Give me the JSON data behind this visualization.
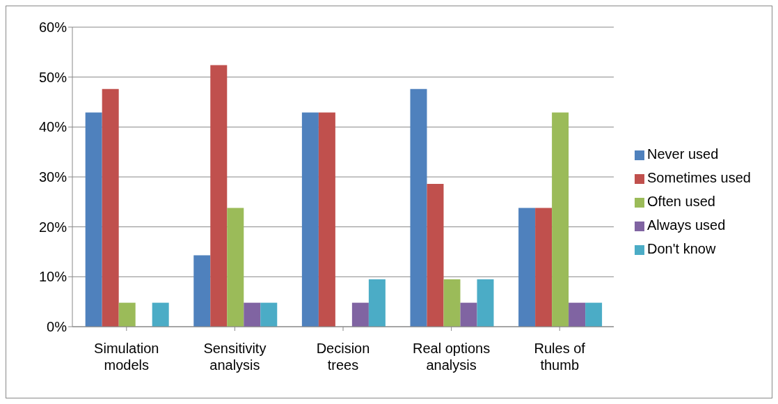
{
  "chart_data": {
    "type": "bar",
    "categories": [
      "Simulation models",
      "Sensitivity analysis",
      "Decision trees",
      "Real options analysis",
      "Rules of thumb"
    ],
    "series": [
      {
        "name": "Never used",
        "color": "#4f81bd",
        "values": [
          42.9,
          14.3,
          42.9,
          47.6,
          23.8
        ]
      },
      {
        "name": "Sometimes used",
        "color": "#c0504d",
        "values": [
          47.6,
          52.4,
          42.9,
          28.6,
          23.8
        ]
      },
      {
        "name": "Often used",
        "color": "#9bbb59",
        "values": [
          4.8,
          23.8,
          0,
          9.5,
          42.9
        ]
      },
      {
        "name": "Always used",
        "color": "#8064a2",
        "values": [
          0,
          4.8,
          4.8,
          4.8,
          4.8
        ]
      },
      {
        "name": "Don't know",
        "color": "#4bacc6",
        "values": [
          4.8,
          4.8,
          9.5,
          9.5,
          4.8
        ]
      }
    ],
    "ylim": [
      0,
      60
    ],
    "yticks": [
      {
        "value": 0,
        "label": "0%"
      },
      {
        "value": 10,
        "label": "10%"
      },
      {
        "value": 20,
        "label": "20%"
      },
      {
        "value": 30,
        "label": "30%"
      },
      {
        "value": 40,
        "label": "40%"
      },
      {
        "value": 50,
        "label": "50%"
      },
      {
        "value": 60,
        "label": "60%"
      }
    ],
    "grid": "y",
    "legend": "right"
  }
}
